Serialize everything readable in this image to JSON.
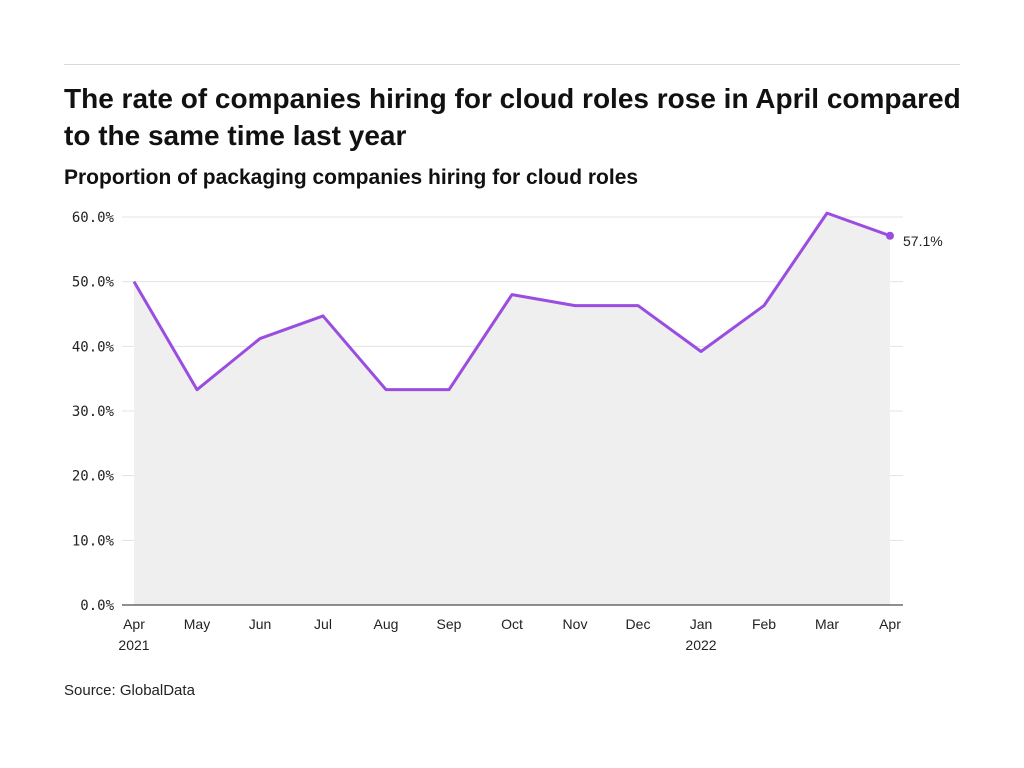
{
  "header": {
    "title": "The rate of companies hiring for cloud roles rose in April compared to the same time last year",
    "subtitle": "Proportion of packaging companies hiring for cloud roles"
  },
  "footer": {
    "source": "Source: GlobalData"
  },
  "colors": {
    "line": "#9b4de0",
    "area": "#efefef",
    "grid": "#e3e3e3",
    "axis": "#222222"
  },
  "chart_data": {
    "type": "area",
    "title": "The rate of companies hiring for cloud roles rose in April compared to the same time last year",
    "subtitle": "Proportion of packaging companies hiring for cloud roles",
    "xlabel": "",
    "ylabel": "",
    "categories": [
      "Apr",
      "May",
      "Jun",
      "Jul",
      "Aug",
      "Sep",
      "Oct",
      "Nov",
      "Dec",
      "Jan",
      "Feb",
      "Mar",
      "Apr"
    ],
    "category_sublabels": [
      "2021",
      "",
      "",
      "",
      "",
      "",
      "",
      "",
      "",
      "2022",
      "",
      "",
      ""
    ],
    "series": [
      {
        "values": [
          50.0,
          33.3,
          41.2,
          44.7,
          33.3,
          33.3,
          48.0,
          46.3,
          46.3,
          39.2,
          46.3,
          60.6,
          57.1
        ]
      }
    ],
    "ylim": [
      0,
      60
    ],
    "yticks": [
      0,
      10,
      20,
      30,
      40,
      50,
      60
    ],
    "ytick_labels": [
      "0.0%",
      "10.0%",
      "20.0%",
      "30.0%",
      "40.0%",
      "50.0%",
      "60.0%"
    ],
    "end_label": "57.1%",
    "grid": true,
    "legend": "none"
  }
}
